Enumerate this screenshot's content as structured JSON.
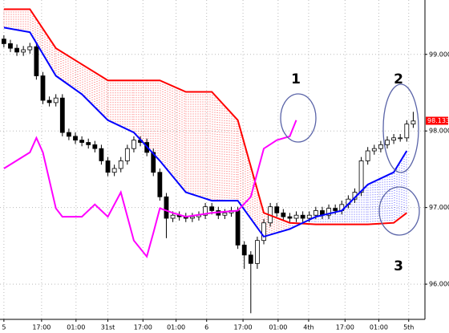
{
  "chart_data": {
    "type": "candlestick",
    "x": [
      0,
      1,
      2,
      3,
      4,
      5,
      6,
      7,
      8,
      9,
      10,
      11,
      12,
      13,
      14,
      15,
      16,
      17,
      18,
      19,
      20,
      21,
      22,
      23,
      24,
      25,
      26,
      27,
      28,
      29,
      30,
      31,
      32,
      33,
      34,
      35,
      36,
      37,
      38,
      39,
      40,
      41,
      42,
      43,
      44,
      45,
      46,
      47,
      48,
      49,
      50,
      51,
      52,
      53,
      54,
      55,
      56,
      57,
      58,
      59,
      60,
      61,
      62,
      63
    ],
    "open": [
      99.2,
      99.14,
      99.08,
      99.03,
      99.06,
      99.1,
      98.72,
      98.4,
      98.37,
      98.43,
      97.98,
      97.93,
      97.88,
      97.85,
      97.82,
      97.77,
      97.61,
      97.46,
      97.51,
      97.61,
      97.77,
      97.88,
      97.85,
      97.72,
      97.46,
      97.14,
      96.86,
      96.9,
      96.88,
      96.86,
      96.88,
      96.9,
      97.01,
      96.96,
      96.9,
      96.93,
      96.96,
      96.51,
      96.38,
      96.27,
      96.57,
      96.8,
      97.01,
      96.93,
      96.88,
      96.86,
      96.9,
      96.86,
      96.9,
      96.96,
      96.9,
      96.99,
      96.96,
      97.04,
      97.11,
      97.2,
      97.61,
      97.74,
      97.77,
      97.82,
      97.88,
      97.91,
      97.91,
      98.09
    ],
    "high": [
      99.25,
      99.19,
      99.13,
      99.11,
      99.15,
      99.15,
      98.77,
      98.45,
      98.48,
      98.48,
      98.03,
      97.98,
      97.93,
      97.9,
      97.87,
      97.82,
      97.66,
      97.56,
      97.66,
      97.82,
      97.93,
      97.93,
      97.9,
      97.77,
      97.51,
      97.19,
      96.95,
      96.95,
      96.93,
      96.93,
      96.95,
      97.06,
      97.06,
      97.01,
      96.98,
      97.01,
      97.01,
      96.56,
      96.43,
      96.62,
      96.85,
      97.06,
      97.06,
      96.98,
      96.93,
      96.95,
      96.95,
      96.95,
      97.01,
      97.01,
      97.04,
      97.04,
      97.09,
      97.16,
      97.25,
      97.66,
      97.79,
      97.82,
      97.87,
      97.93,
      97.96,
      97.96,
      98.14,
      98.25
    ],
    "low": [
      99.09,
      99.03,
      98.98,
      98.98,
      99.01,
      98.67,
      98.35,
      98.32,
      98.32,
      97.93,
      97.88,
      97.83,
      97.8,
      97.77,
      97.72,
      97.56,
      97.41,
      97.41,
      97.46,
      97.56,
      97.72,
      97.8,
      97.67,
      97.41,
      97.09,
      96.6,
      96.81,
      96.83,
      96.81,
      96.81,
      96.83,
      96.85,
      96.91,
      96.85,
      96.85,
      96.88,
      96.46,
      96.2,
      95.62,
      96.2,
      96.52,
      96.75,
      96.88,
      96.83,
      96.81,
      96.81,
      96.81,
      96.81,
      96.85,
      96.85,
      96.85,
      96.91,
      96.91,
      96.99,
      97.06,
      97.15,
      97.56,
      97.69,
      97.72,
      97.77,
      97.83,
      97.86,
      97.86,
      98.04
    ],
    "close": [
      99.14,
      99.08,
      99.03,
      99.06,
      99.1,
      98.72,
      98.4,
      98.37,
      98.43,
      97.98,
      97.93,
      97.88,
      97.85,
      97.82,
      97.77,
      97.61,
      97.46,
      97.51,
      97.61,
      97.77,
      97.88,
      97.85,
      97.72,
      97.46,
      97.14,
      96.86,
      96.9,
      96.88,
      96.86,
      96.88,
      96.9,
      97.01,
      96.96,
      96.9,
      96.93,
      96.96,
      96.51,
      96.38,
      96.27,
      96.57,
      96.8,
      97.01,
      96.93,
      96.88,
      96.86,
      96.9,
      96.86,
      96.9,
      96.96,
      96.9,
      96.99,
      96.96,
      97.04,
      97.11,
      97.2,
      97.61,
      97.74,
      97.77,
      97.82,
      97.88,
      97.91,
      97.91,
      98.09,
      98.13
    ],
    "series": [
      {
        "color": "#ff0000",
        "x": [
          0,
          4,
          8,
          12,
          16,
          20,
          24,
          28,
          32,
          36,
          40,
          44,
          48,
          52,
          56,
          60,
          62
        ],
        "values": [
          99.59,
          99.59,
          99.08,
          98.87,
          98.66,
          98.66,
          98.66,
          98.51,
          98.51,
          98.14,
          96.93,
          96.8,
          96.78,
          96.78,
          96.78,
          96.8,
          96.93
        ]
      },
      {
        "color": "#0000ff",
        "x": [
          0,
          4,
          8,
          12,
          16,
          20,
          24,
          28,
          32,
          36,
          40,
          44,
          48,
          52,
          56,
          60,
          62
        ],
        "values": [
          99.35,
          99.29,
          98.72,
          98.48,
          98.14,
          97.98,
          97.61,
          97.2,
          97.09,
          97.09,
          96.62,
          96.72,
          96.88,
          96.96,
          97.3,
          97.46,
          97.74
        ]
      },
      {
        "color": "#ff00ff",
        "x": [
          0,
          4,
          5,
          6,
          8,
          9,
          12,
          14,
          16,
          18,
          20,
          22,
          23,
          24,
          26,
          28,
          32,
          36,
          38,
          40,
          42,
          44,
          45
        ],
        "values": [
          97.51,
          97.72,
          97.91,
          97.72,
          96.99,
          96.88,
          96.88,
          97.04,
          96.88,
          97.2,
          96.57,
          96.36,
          96.67,
          96.99,
          96.93,
          96.88,
          96.93,
          96.96,
          97.14,
          97.77,
          97.88,
          97.93,
          98.14
        ]
      }
    ],
    "xlim": [
      -0.6,
      64.8
    ],
    "ylim": [
      95.54,
      99.71
    ],
    "xticks": [
      {
        "value": 0,
        "label": "5"
      },
      {
        "value": 5.8,
        "label": "17:00"
      },
      {
        "value": 11.1,
        "label": "01:00"
      },
      {
        "value": 16,
        "label": "31st"
      },
      {
        "value": 21.4,
        "label": "17:00"
      },
      {
        "value": 26.5,
        "label": "01:00"
      },
      {
        "value": 31.2,
        "label": "6"
      },
      {
        "value": 36.8,
        "label": "17:00"
      },
      {
        "value": 42.2,
        "label": "01:00"
      },
      {
        "value": 46.9,
        "label": "4th"
      },
      {
        "value": 52.5,
        "label": "17:00"
      },
      {
        "value": 57.7,
        "label": "01:00"
      },
      {
        "value": 62.3,
        "label": "5th"
      }
    ],
    "yticks": [
      {
        "value": 96,
        "label": "96.000"
      },
      {
        "value": 97,
        "label": "97.000"
      },
      {
        "value": 98,
        "label": "98.000"
      },
      {
        "value": 99,
        "label": "99.000"
      }
    ],
    "last_price": 98.133,
    "grid": true,
    "annotations": [
      "1",
      "2",
      "3"
    ]
  }
}
